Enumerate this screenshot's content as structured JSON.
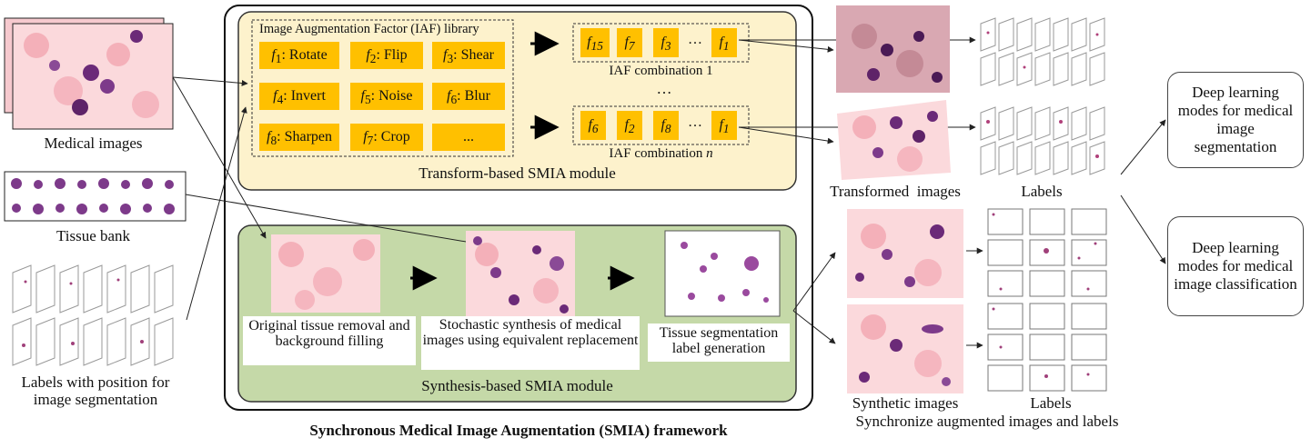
{
  "inputs": {
    "medical_images": "Medical images",
    "tissue_bank": "Tissue bank",
    "labels_line1": "Labels with position for",
    "labels_line2": "image segmentation"
  },
  "transform_module": {
    "library_title": "Image Augmentation Factor (IAF) library",
    "factors": [
      {
        "sym": "f",
        "sub": "1",
        "name": "Rotate"
      },
      {
        "sym": "f",
        "sub": "2",
        "name": "Flip"
      },
      {
        "sym": "f",
        "sub": "3",
        "name": "Shear"
      },
      {
        "sym": "f",
        "sub": "4",
        "name": "Invert"
      },
      {
        "sym": "f",
        "sub": "5",
        "name": "Noise"
      },
      {
        "sym": "f",
        "sub": "6",
        "name": "Blur"
      },
      {
        "sym": "f",
        "sub": "8",
        "name": "Sharpen"
      },
      {
        "sym": "f",
        "sub": "7",
        "name": "Crop"
      },
      {
        "sym": "",
        "sub": "",
        "name": "..."
      }
    ],
    "combo1": [
      "15",
      "7",
      "3",
      "…",
      "1"
    ],
    "combo1_label": "IAF combination 1",
    "combo_ellipsis": "…",
    "comboN": [
      "6",
      "2",
      "8",
      "…",
      "1"
    ],
    "comboN_label_prefix": "IAF combination ",
    "comboN_label_n": "n",
    "module_label": "Transform-based SMIA module"
  },
  "synthesis_module": {
    "step1": "Original tissue removal and background filling",
    "step2": "Stochastic synthesis of medical images using equivalent replacement",
    "step3": "Tissue segmentation label generation",
    "module_label": "Synthesis-based SMIA module"
  },
  "framework_label": "Synchronous Medical Image Augmentation (SMIA) framework",
  "outputs": {
    "transformed_images": "Transformed  images",
    "labels_top": "Labels",
    "synthetic_images": "Synthetic images",
    "labels_bottom": "Labels",
    "sync_caption": "Synchronize augmented images and labels"
  },
  "targets": {
    "segmentation": "Deep learning modes for medical image segmentation",
    "classification": "Deep learning modes for medical image classification"
  },
  "colors": {
    "transform_bg": "#fdf2cc",
    "synthesis_bg": "#c5d9a8",
    "factor_fill": "#ffc000"
  }
}
